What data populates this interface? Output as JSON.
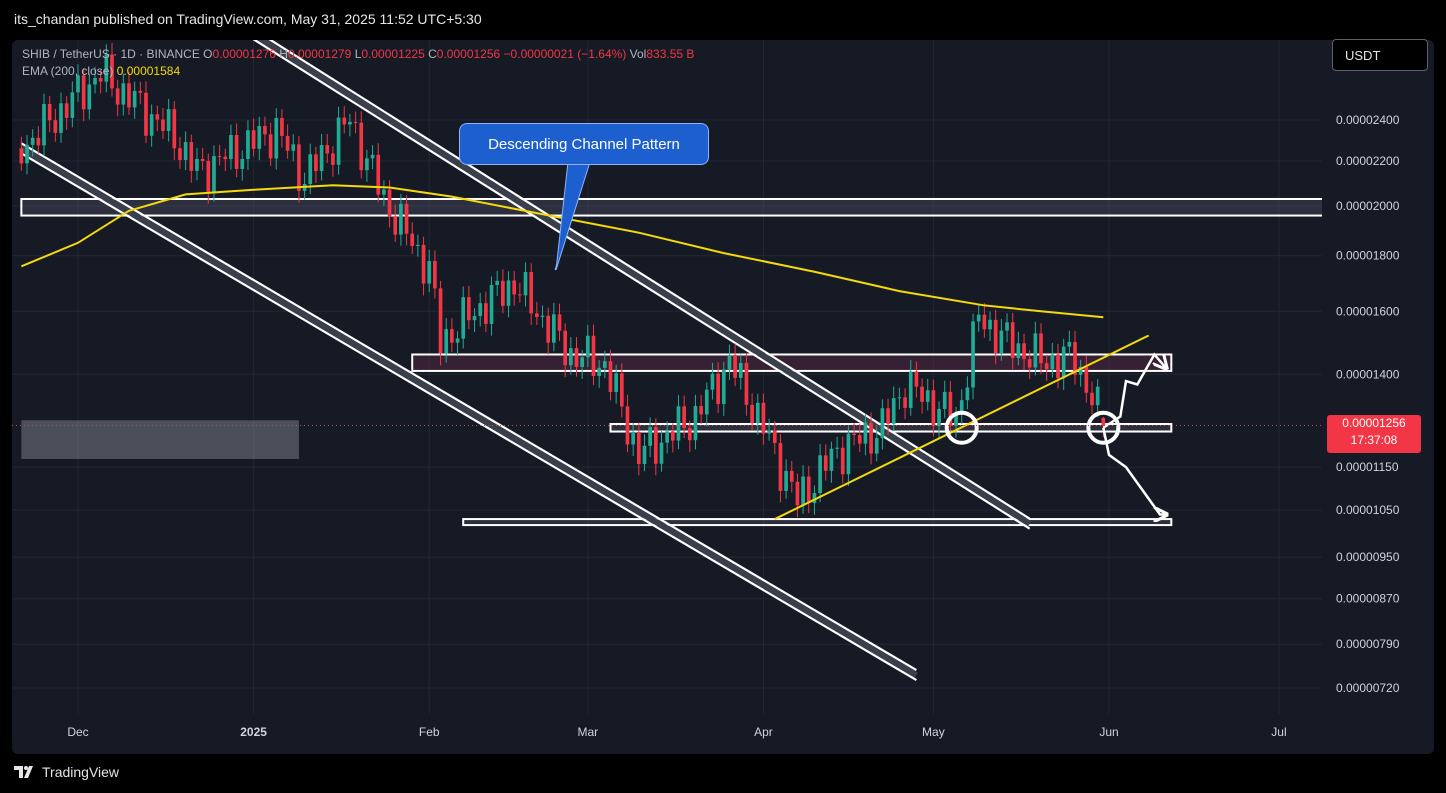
{
  "header": {
    "published": "its_chandan published on TradingView.com, May 31, 2025 11:52 UTC+5:30"
  },
  "legend": {
    "symbol": "SHIB / TetherUS · 1D · BINANCE",
    "open_label": "O",
    "open": "0.00001276",
    "high_label": "H",
    "high": "0.00001279",
    "low_label": "L",
    "low": "0.00001225",
    "close_label": "C",
    "close": "0.00001256",
    "change": "−0.00000021 (−1.64%)",
    "vol_label": "Vol",
    "vol": "833.55 B",
    "ema_label": "EMA (200, close)",
    "ema_value": "0.00001584"
  },
  "currency_button": {
    "label": "USDT"
  },
  "annotation": {
    "callout": "Descending Channel Pattern"
  },
  "price_tag": {
    "price": "0.00001256",
    "countdown": "17:37:08"
  },
  "footer": {
    "brand": "TradingView"
  },
  "colors": {
    "up": "#22ab94",
    "down": "#f23645",
    "ema": "#f5d90a",
    "background": "#161a25",
    "annotation_blue": "#1e5fd0"
  },
  "chart_data": {
    "type": "candlestick",
    "y_scale": "log",
    "ylim": [
      6.9e-06,
      2.75e-05
    ],
    "y_ticks": [
      "0.00002400",
      "0.00002200",
      "0.00002000",
      "0.00001800",
      "0.00001600",
      "0.00001400",
      "0.00001150",
      "0.00001050",
      "0.00000950",
      "0.00000870",
      "0.00000790",
      "0.00000720"
    ],
    "y_tick_values": [
      2.4e-05,
      2.2e-05,
      2e-05,
      1.8e-05,
      1.6e-05,
      1.4e-05,
      1.15e-05,
      1.05e-05,
      9.5e-06,
      8.7e-06,
      7.9e-06,
      7.2e-06
    ],
    "x_ticks": [
      {
        "label": "Dec",
        "date": "2024-12-01"
      },
      {
        "label": "2025",
        "date": "2025-01-01"
      },
      {
        "label": "Feb",
        "date": "2025-02-01"
      },
      {
        "label": "Mar",
        "date": "2025-03-01"
      },
      {
        "label": "Apr",
        "date": "2025-04-01"
      },
      {
        "label": "May",
        "date": "2025-05-01"
      },
      {
        "label": "Jun",
        "date": "2025-06-01"
      },
      {
        "label": "Jul",
        "date": "2025-07-01"
      }
    ],
    "last_price": 1.256e-05,
    "ema_200": [
      [
        "2024-11-21",
        1.76e-05
      ],
      [
        "2024-12-01",
        1.85e-05
      ],
      [
        "2024-12-10",
        1.98e-05
      ],
      [
        "2024-12-20",
        2.05e-05
      ],
      [
        "2025-01-01",
        2.07e-05
      ],
      [
        "2025-01-15",
        2.09e-05
      ],
      [
        "2025-01-25",
        2.08e-05
      ],
      [
        "2025-02-05",
        2.04e-05
      ],
      [
        "2025-02-20",
        1.97e-05
      ],
      [
        "2025-03-10",
        1.89e-05
      ],
      [
        "2025-03-25",
        1.81e-05
      ],
      [
        "2025-04-10",
        1.74e-05
      ],
      [
        "2025-04-25",
        1.67e-05
      ],
      [
        "2025-05-10",
        1.62e-05
      ],
      [
        "2025-05-20",
        1.6e-05
      ],
      [
        "2025-05-31",
        1.58e-05
      ]
    ],
    "zones": [
      {
        "from": "2024-11-21",
        "to": "2025-07-21",
        "low": 1.96e-05,
        "high": 2.03e-05
      },
      {
        "from": "2025-01-29",
        "to": "2025-06-12",
        "low": 1.41e-05,
        "high": 1.46e-05
      },
      {
        "from": "2025-03-05",
        "to": "2025-06-12",
        "low": 1.24e-05,
        "high": 1.26e-05
      },
      {
        "from": "2025-02-07",
        "to": "2025-06-12",
        "low": 1.02e-05,
        "high": 1.03e-05
      },
      {
        "from": "2024-11-21",
        "to": "2025-01-09",
        "low": 1.17e-05,
        "high": 1.27e-05
      }
    ],
    "channel_upper": {
      "from": [
        "2024-12-31",
        2.9e-05
      ],
      "to": [
        "2025-05-18",
        1.02e-05
      ]
    },
    "channel_lower": {
      "from": [
        "2024-11-21",
        2.26e-05
      ],
      "to": [
        "2025-04-28",
        7.4e-06
      ]
    },
    "trendline_support": {
      "from": [
        "2025-04-03",
        1.03e-05
      ],
      "to": [
        "2025-06-08",
        1.52e-05
      ]
    },
    "circles": [
      [
        "2025-05-06",
        1.25e-05
      ],
      [
        "2025-05-31",
        1.25e-05
      ]
    ],
    "projection_up": [
      [
        "2025-05-31",
        1.25e-05
      ],
      [
        "2025-06-03",
        1.28e-05
      ],
      [
        "2025-06-04",
        1.38e-05
      ],
      [
        "2025-06-06",
        1.37e-05
      ],
      [
        "2025-06-09",
        1.46e-05
      ],
      [
        "2025-06-11",
        1.42e-05
      ]
    ],
    "projection_down": [
      [
        "2025-05-31",
        1.25e-05
      ],
      [
        "2025-06-01",
        1.18e-05
      ],
      [
        "2025-06-04",
        1.15e-05
      ],
      [
        "2025-06-10",
        1.04e-05
      ],
      [
        "2025-06-11",
        1.04e-05
      ]
    ],
    "candles": []
  }
}
